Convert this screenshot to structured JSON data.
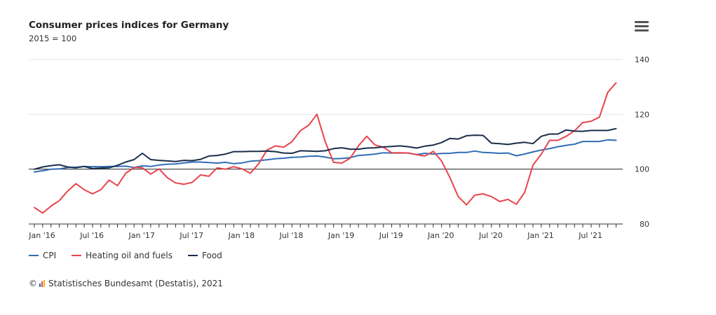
{
  "title": "Consumer prices indices for Germany",
  "subtitle": "2015 = 100",
  "menu_icon": "hamburger-menu-icon",
  "credits": {
    "copyright": "©",
    "source": "Statistisches Bundesamt (Destatis), 2021"
  },
  "chart_data": {
    "type": "line",
    "title": "Consumer prices indices for Germany",
    "subtitle": "2015 = 100",
    "xlabel": "",
    "ylabel": "",
    "ylim": [
      80,
      140
    ],
    "yticks": [
      80,
      100,
      120,
      140
    ],
    "y_axis_side": "right",
    "reference_line": 100,
    "x_start": "Jan '16",
    "x_tick_labels": [
      "Jan '16",
      "Jul '16",
      "Jan '17",
      "Jul '17",
      "Jan '18",
      "Jul '18",
      "Jan '19",
      "Jul '19",
      "Jan '20",
      "Jul '20",
      "Jan '21",
      "Jul '21"
    ],
    "x_tick_indices": [
      0,
      6,
      12,
      18,
      24,
      30,
      36,
      42,
      48,
      54,
      60,
      66
    ],
    "legend_position": "bottom-left",
    "series": [
      {
        "name": "CPI",
        "color": "#2f6db5",
        "values": [
          99.0,
          99.4,
          100.0,
          100.1,
          100.6,
          100.7,
          101.0,
          100.9,
          100.9,
          101.0,
          101.0,
          101.1,
          100.6,
          101.2,
          101.0,
          101.5,
          101.8,
          101.9,
          102.3,
          102.6,
          102.6,
          102.4,
          102.2,
          102.5,
          102.0,
          102.3,
          102.9,
          103.1,
          103.4,
          103.8,
          104.0,
          104.3,
          104.4,
          104.7,
          104.8,
          104.4,
          103.8,
          103.9,
          104.2,
          105.0,
          105.2,
          105.5,
          106.0,
          105.9,
          105.9,
          105.9,
          105.3,
          105.8,
          105.5,
          105.7,
          105.8,
          106.1,
          106.1,
          106.6,
          106.1,
          106.0,
          105.8,
          105.9,
          104.9,
          105.5,
          106.3,
          107.0,
          107.5,
          108.2,
          108.7,
          109.1,
          110.1,
          110.1,
          110.1,
          110.7,
          110.5
        ]
      },
      {
        "name": "Heating oil and fuels",
        "color": "#e8434c",
        "values": [
          86.0,
          84.0,
          86.5,
          88.5,
          92.0,
          94.7,
          92.5,
          91.0,
          92.5,
          96.0,
          94.0,
          98.5,
          100.6,
          100.5,
          98.2,
          100.1,
          96.9,
          95.0,
          94.5,
          95.2,
          97.9,
          97.4,
          100.5,
          100.0,
          100.9,
          100.1,
          98.5,
          102.0,
          107.0,
          108.5,
          108.0,
          110.0,
          114.0,
          116.0,
          120.0,
          110.0,
          102.5,
          102.2,
          104.0,
          108.5,
          112.0,
          108.8,
          108.0,
          106.0,
          106.0,
          105.9,
          105.3,
          104.8,
          106.5,
          103.0,
          97.0,
          90.0,
          87.0,
          90.5,
          91.0,
          90.0,
          88.2,
          89.0,
          87.2,
          91.5,
          101.5,
          105.5,
          110.5,
          110.5,
          112.0,
          114.0,
          117.0,
          117.5,
          119.0,
          128.0,
          131.5
        ]
      },
      {
        "name": "Food",
        "color": "#1a2e4a",
        "values": [
          100.0,
          100.8,
          101.3,
          101.6,
          100.8,
          100.5,
          101.0,
          100.2,
          100.4,
          100.5,
          101.4,
          102.6,
          103.5,
          105.8,
          103.5,
          103.2,
          103.0,
          102.8,
          103.2,
          103.1,
          103.6,
          104.8,
          105.0,
          105.5,
          106.4,
          106.4,
          106.5,
          106.5,
          106.6,
          106.4,
          105.9,
          105.8,
          106.7,
          106.6,
          106.5,
          106.7,
          107.5,
          107.8,
          107.3,
          107.3,
          107.7,
          107.8,
          108.1,
          108.3,
          108.5,
          108.2,
          107.7,
          108.4,
          108.8,
          109.7,
          111.2,
          111.0,
          112.2,
          112.4,
          112.3,
          109.5,
          109.3,
          109.0,
          109.5,
          109.8,
          109.3,
          112.0,
          112.8,
          112.8,
          114.3,
          113.9,
          113.8,
          114.1,
          114.1,
          114.1,
          114.8
        ]
      }
    ]
  }
}
